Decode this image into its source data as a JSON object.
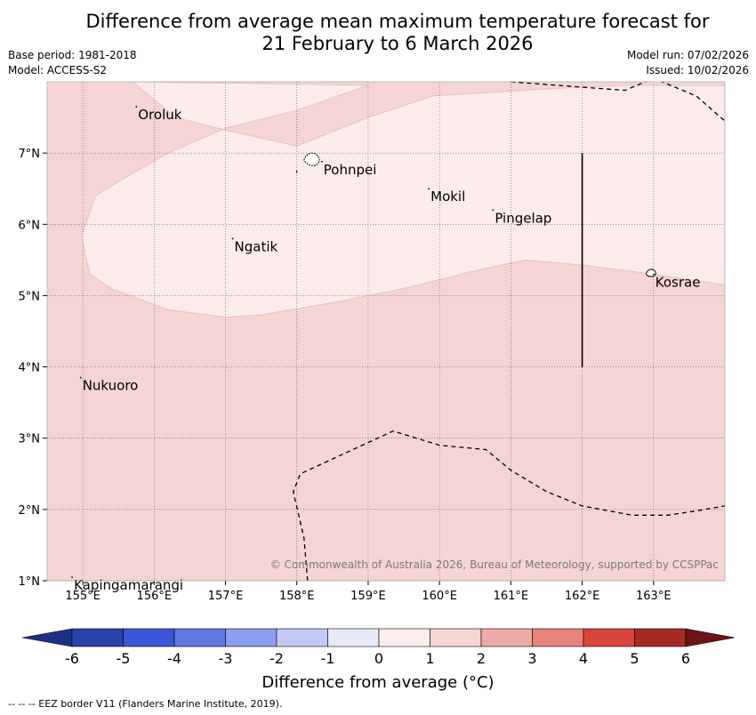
{
  "title_line1": "Difference from average mean maximum temperature forecast for",
  "title_line2": "21 February to 6 March 2026",
  "base_period": "Base period: 1981-2018",
  "model": "Model: ACCESS-S2",
  "model_run": "Model run: 07/02/2026",
  "issued": "Issued: 10/02/2026",
  "copyright": "© Commonwealth of Australia 2026, Bureau of Meteorology, supported by CCSPPac",
  "colorbar_label": "Difference from average (°C)",
  "footer_legend": "--  --  -- EEZ border V11 (Flanders Marine Institute, 2019).",
  "map": {
    "lon_range": [
      154.5,
      164.0
    ],
    "lat_range": [
      1.0,
      8.0
    ],
    "lon_ticks": [
      {
        "value": 155,
        "label": "155°E"
      },
      {
        "value": 156,
        "label": "156°E"
      },
      {
        "value": 157,
        "label": "157°E"
      },
      {
        "value": 158,
        "label": "158°E"
      },
      {
        "value": 159,
        "label": "159°E"
      },
      {
        "value": 160,
        "label": "160°E"
      },
      {
        "value": 161,
        "label": "161°E"
      },
      {
        "value": 162,
        "label": "162°E"
      },
      {
        "value": 163,
        "label": "163°E"
      }
    ],
    "lat_ticks": [
      {
        "value": 1,
        "label": "1°N"
      },
      {
        "value": 2,
        "label": "2°N"
      },
      {
        "value": 3,
        "label": "3°N"
      },
      {
        "value": 4,
        "label": "4°N"
      },
      {
        "value": 5,
        "label": "5°N"
      },
      {
        "value": 6,
        "label": "6°N"
      },
      {
        "value": 7,
        "label": "7°N"
      }
    ],
    "places": [
      {
        "name": "Oroluk",
        "lon": 155.75,
        "lat": 7.65
      },
      {
        "name": "Pohnpei",
        "lon": 158.35,
        "lat": 6.88
      },
      {
        "name": "Mokil",
        "lon": 159.85,
        "lat": 6.5
      },
      {
        "name": "Pingelap",
        "lon": 160.75,
        "lat": 6.2
      },
      {
        "name": "Ngatik",
        "lon": 157.1,
        "lat": 5.8
      },
      {
        "name": "Kosrae",
        "lon": 163.0,
        "lat": 5.3
      },
      {
        "name": "Nukuoro",
        "lon": 154.97,
        "lat": 3.85
      },
      {
        "name": "Kapingamarangi",
        "lon": 154.85,
        "lat": 1.05
      }
    ],
    "region_colors": {
      "base": "#f5d5d3",
      "light": "#fbebea"
    },
    "light_region": [
      [
        155.7,
        8.0
      ],
      [
        156.3,
        7.5
      ],
      [
        157.1,
        7.3
      ],
      [
        158.0,
        7.1
      ],
      [
        159.0,
        7.5
      ],
      [
        159.9,
        7.8
      ],
      [
        161.5,
        7.9
      ],
      [
        162.6,
        7.95
      ],
      [
        164.0,
        7.95
      ],
      [
        164.0,
        5.15
      ],
      [
        163.0,
        5.3
      ],
      [
        162.0,
        5.43
      ],
      [
        161.2,
        5.5
      ],
      [
        160.5,
        5.35
      ],
      [
        159.5,
        5.1
      ],
      [
        158.5,
        4.9
      ],
      [
        157.5,
        4.73
      ],
      [
        157.0,
        4.7
      ],
      [
        156.2,
        4.8
      ],
      [
        155.4,
        5.1
      ],
      [
        155.1,
        5.3
      ],
      [
        154.98,
        5.83
      ],
      [
        155.18,
        6.4
      ],
      [
        155.5,
        6.6
      ],
      [
        156.2,
        7.0
      ],
      [
        157.0,
        7.35
      ],
      [
        158.0,
        7.6
      ],
      [
        159.0,
        7.95
      ]
    ],
    "eez_north": [
      [
        161.0,
        8.0
      ],
      [
        162.6,
        7.88
      ],
      [
        163.0,
        8.05
      ],
      [
        163.6,
        7.8
      ],
      [
        164.0,
        7.45
      ]
    ],
    "eez_south": [
      [
        158.15,
        1.0
      ],
      [
        158.1,
        1.6
      ],
      [
        157.95,
        2.25
      ],
      [
        158.05,
        2.5
      ],
      [
        158.7,
        2.8
      ],
      [
        159.35,
        3.1
      ],
      [
        160.0,
        2.9
      ],
      [
        160.65,
        2.84
      ],
      [
        161.0,
        2.55
      ],
      [
        161.5,
        2.25
      ],
      [
        162.0,
        2.05
      ],
      [
        162.7,
        1.92
      ],
      [
        163.2,
        1.92
      ],
      [
        163.6,
        1.98
      ],
      [
        164.0,
        2.05
      ]
    ],
    "boundary_line": {
      "lon": 162.0,
      "lat_from": 4.0,
      "lat_to": 7.0
    }
  },
  "colorbar": {
    "ticks": [
      "-6",
      "-5",
      "-4",
      "-3",
      "-2",
      "-1",
      "0",
      "1",
      "2",
      "3",
      "4",
      "5",
      "6"
    ],
    "below_color": "#1f2f86",
    "above_color": "#6d1414",
    "colors": [
      "#2942ad",
      "#3b56d8",
      "#5f78e4",
      "#8c9eee",
      "#c2c9f5",
      "#e8eafb",
      "#fdecec",
      "#f6d6d4",
      "#eeaaa6",
      "#e8837c",
      "#d8453b",
      "#a82a24"
    ]
  }
}
